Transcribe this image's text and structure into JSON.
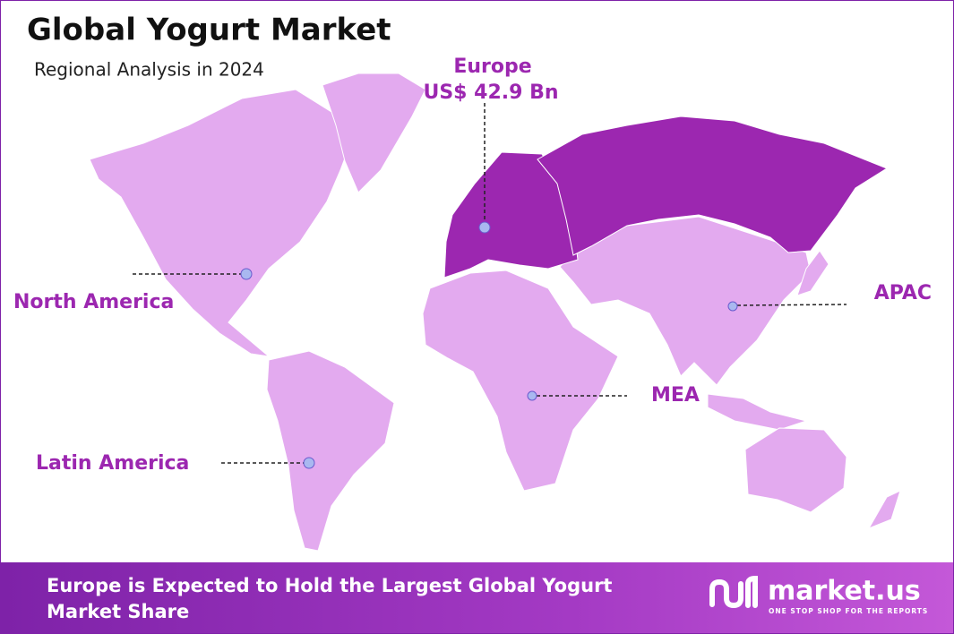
{
  "header": {
    "title": "Global Yogurt Market",
    "subtitle": "Regional Analysis in 2024"
  },
  "regions": [
    {
      "label": "Europe",
      "value": "US$ 42.9 Bn"
    },
    {
      "label": "North America"
    },
    {
      "label": "APAC"
    },
    {
      "label": "MEA"
    },
    {
      "label": "Latin America"
    }
  ],
  "footer": {
    "lines": [
      "Europe is Expected to Hold the Largest Global Yogurt",
      "Market Share"
    ],
    "logo": "market.us",
    "tagline": "ONE STOP SHOP FOR THE REPORTS"
  }
}
